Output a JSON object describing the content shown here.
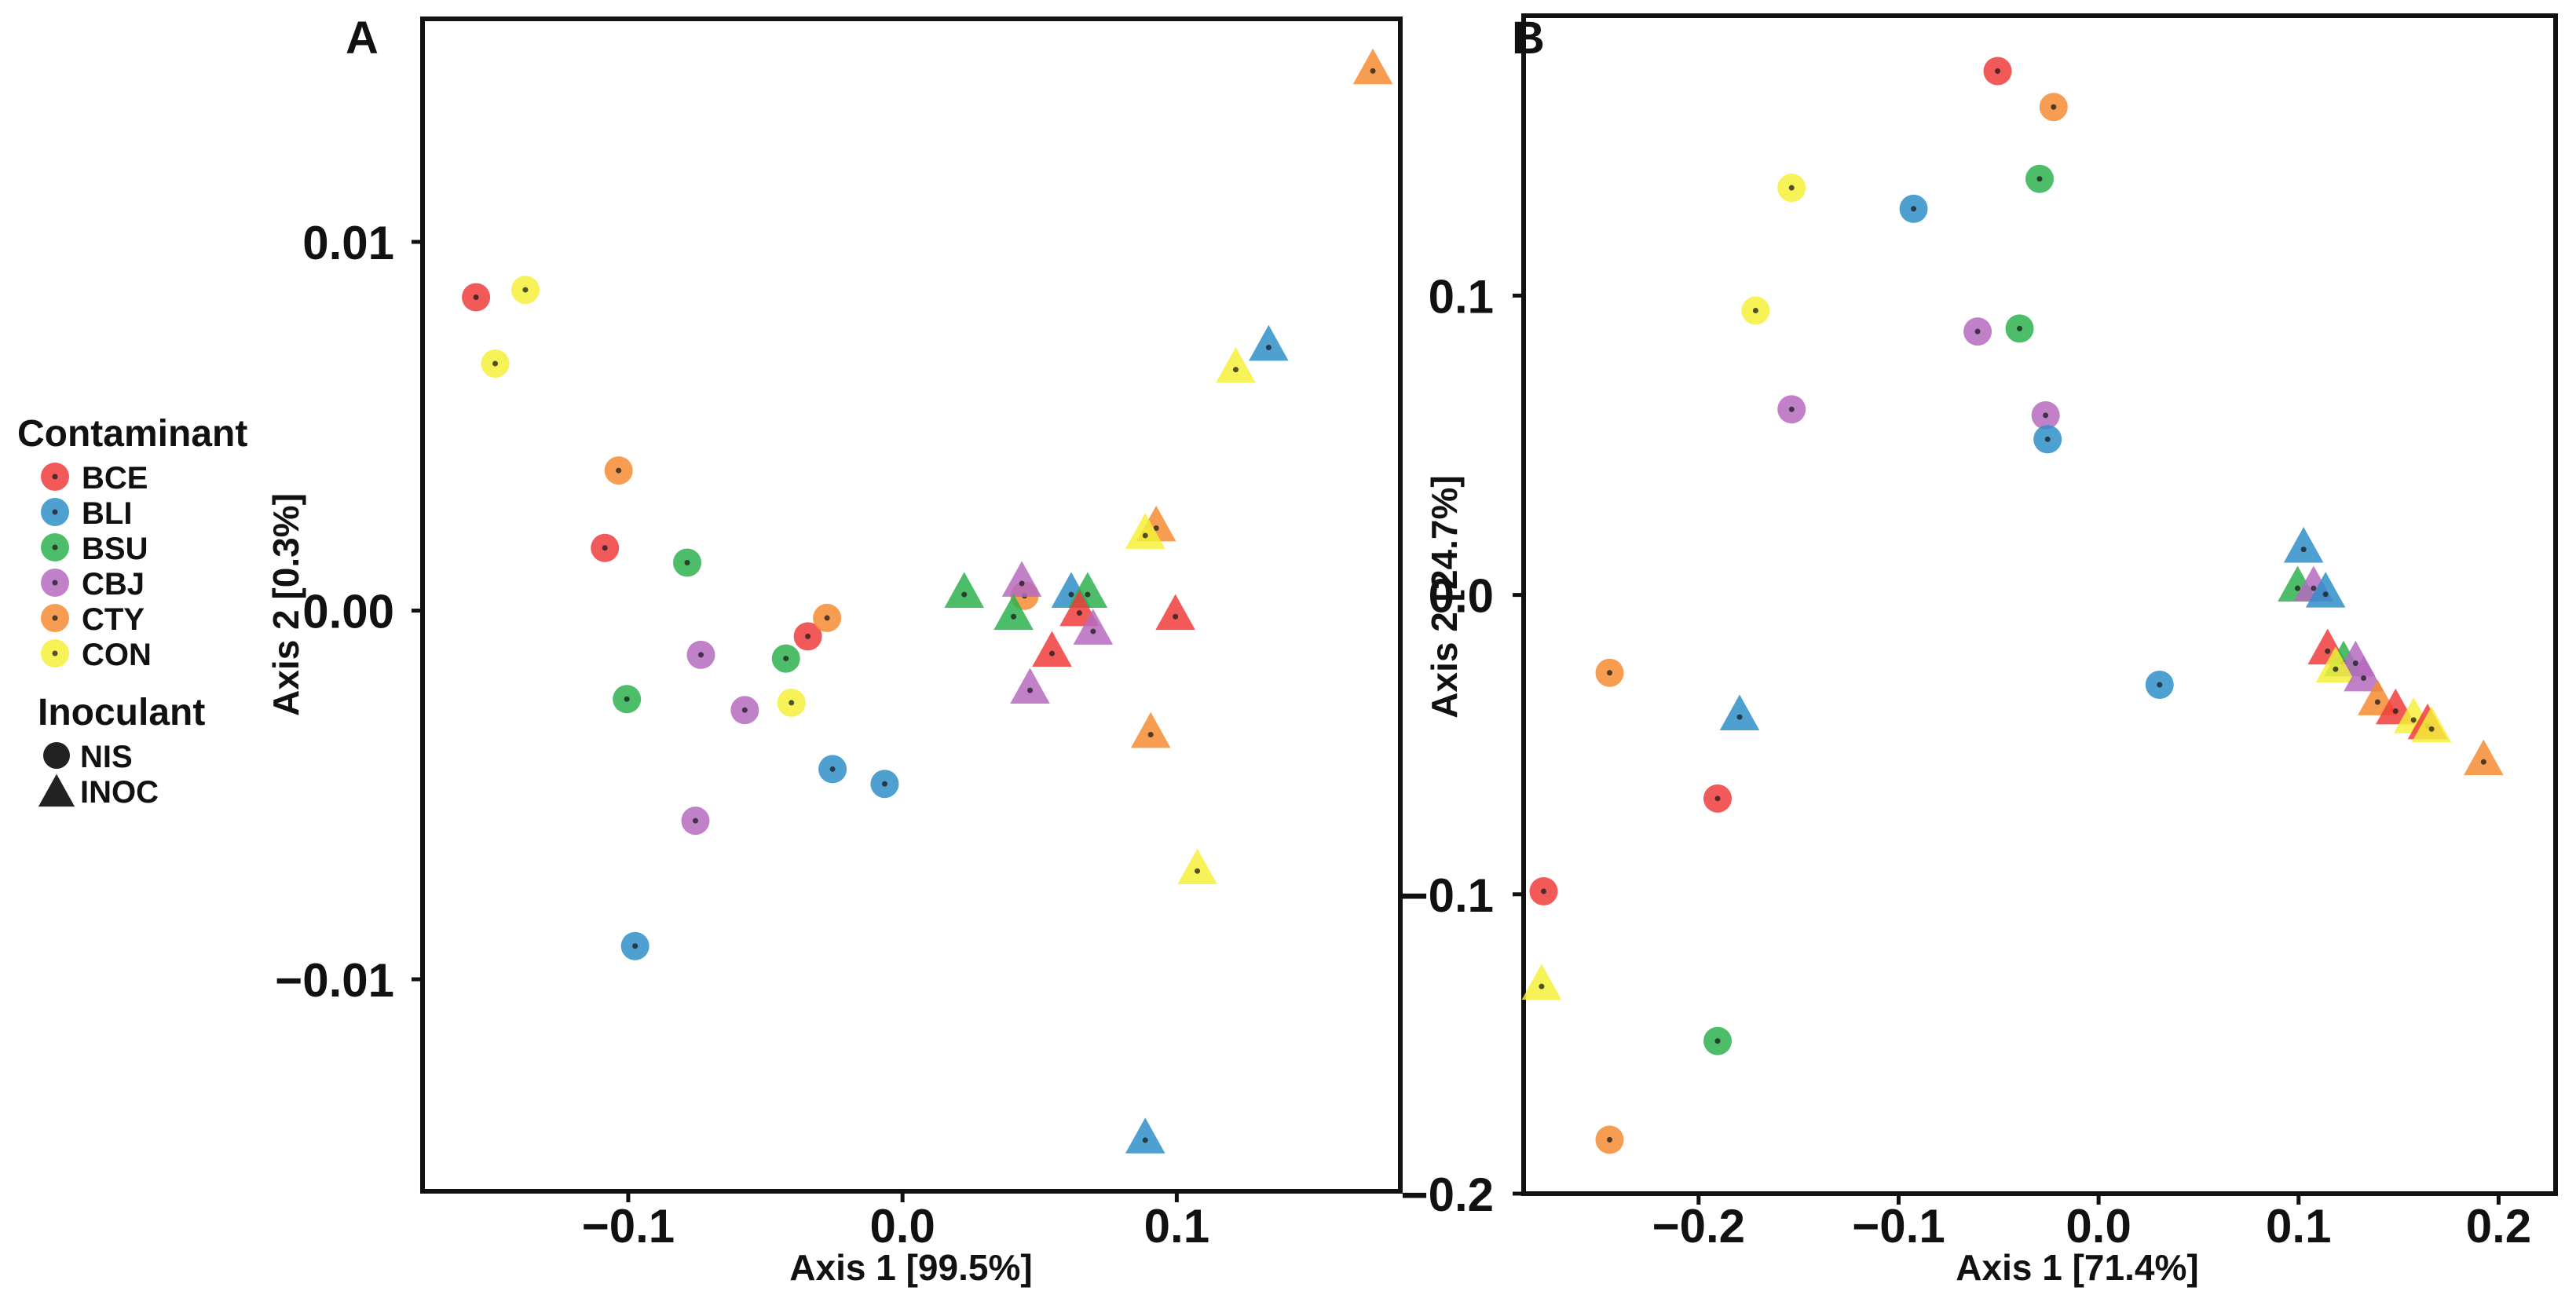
{
  "colors": {
    "BCE": "#f03c3c",
    "BLI": "#2f8fc8",
    "BSU": "#2eb24f",
    "CBJ": "#b56bbf",
    "CTY": "#f48c32",
    "CON": "#f5f03a"
  },
  "legend": {
    "contaminant_title": "Contaminant",
    "contaminant_items": [
      "BCE",
      "BLI",
      "BSU",
      "CBJ",
      "CTY",
      "CON"
    ],
    "inoculant_title": "Inoculant",
    "inoculant_items": [
      {
        "label": "NIS",
        "shape": "circle"
      },
      {
        "label": "INOC",
        "shape": "triangle"
      }
    ]
  },
  "chart_data": [
    {
      "panel": "A",
      "type": "scatter",
      "xlabel": "Axis 1   [99.5%]",
      "ylabel": "Axis 2   [0.3%]",
      "xlim": [
        -0.175,
        0.1815
      ],
      "ylim": [
        -0.01575,
        0.01605
      ],
      "xticks": [
        -0.1,
        0.0,
        0.1
      ],
      "xtick_labels": [
        "−0.1",
        "0.0",
        "0.1"
      ],
      "yticks": [
        0.01,
        0.0,
        -0.01
      ],
      "ytick_labels": [
        "0.01",
        "0.00",
        "−0.01"
      ],
      "points": [
        {
          "x": -0.1555,
          "y": 0.0085,
          "group": "BCE",
          "shape": "NIS"
        },
        {
          "x": -0.1375,
          "y": 0.0087,
          "group": "CON",
          "shape": "NIS"
        },
        {
          "x": -0.1485,
          "y": 0.0067,
          "group": "CON",
          "shape": "NIS"
        },
        {
          "x": -0.1035,
          "y": 0.0038,
          "group": "CTY",
          "shape": "NIS"
        },
        {
          "x": -0.1085,
          "y": 0.0017,
          "group": "BCE",
          "shape": "NIS"
        },
        {
          "x": -0.0785,
          "y": 0.0013,
          "group": "BSU",
          "shape": "NIS"
        },
        {
          "x": -0.1005,
          "y": -0.0024,
          "group": "BSU",
          "shape": "NIS"
        },
        {
          "x": -0.0735,
          "y": -0.0012,
          "group": "CBJ",
          "shape": "NIS"
        },
        {
          "x": -0.0575,
          "y": -0.0027,
          "group": "CBJ",
          "shape": "NIS"
        },
        {
          "x": -0.0405,
          "y": -0.0025,
          "group": "CON",
          "shape": "NIS"
        },
        {
          "x": -0.0425,
          "y": -0.0013,
          "group": "BSU",
          "shape": "NIS"
        },
        {
          "x": -0.0345,
          "y": -0.0007,
          "group": "BCE",
          "shape": "NIS"
        },
        {
          "x": -0.0275,
          "y": -0.0002,
          "group": "CTY",
          "shape": "NIS"
        },
        {
          "x": -0.0255,
          "y": -0.0043,
          "group": "BLI",
          "shape": "NIS"
        },
        {
          "x": -0.0065,
          "y": -0.0047,
          "group": "BLI",
          "shape": "NIS"
        },
        {
          "x": -0.0755,
          "y": -0.0057,
          "group": "CBJ",
          "shape": "NIS"
        },
        {
          "x": -0.0975,
          "y": -0.0091,
          "group": "BLI",
          "shape": "NIS"
        },
        {
          "x": 0.0445,
          "y": 0.0004,
          "group": "CTY",
          "shape": "NIS"
        },
        {
          "x": 0.1715,
          "y": 0.0147,
          "group": "CTY",
          "shape": "INOC"
        },
        {
          "x": 0.1335,
          "y": 0.0072,
          "group": "BLI",
          "shape": "INOC"
        },
        {
          "x": 0.1215,
          "y": 0.0066,
          "group": "CON",
          "shape": "INOC"
        },
        {
          "x": 0.0925,
          "y": 0.0023,
          "group": "CTY",
          "shape": "INOC"
        },
        {
          "x": 0.0885,
          "y": 0.0021,
          "group": "CON",
          "shape": "INOC"
        },
        {
          "x": 0.0225,
          "y": 0.0005,
          "group": "BSU",
          "shape": "INOC"
        },
        {
          "x": 0.0435,
          "y": 0.0008,
          "group": "CBJ",
          "shape": "INOC"
        },
        {
          "x": 0.0615,
          "y": 0.0005,
          "group": "BLI",
          "shape": "INOC"
        },
        {
          "x": 0.0675,
          "y": 0.0005,
          "group": "BSU",
          "shape": "INOC"
        },
        {
          "x": 0.0405,
          "y": -0.0001,
          "group": "BSU",
          "shape": "INOC"
        },
        {
          "x": 0.0645,
          "y": 0.0,
          "group": "BCE",
          "shape": "INOC"
        },
        {
          "x": 0.0995,
          "y": -0.0001,
          "group": "BCE",
          "shape": "INOC"
        },
        {
          "x": 0.0695,
          "y": -0.0005,
          "group": "CBJ",
          "shape": "INOC"
        },
        {
          "x": 0.0545,
          "y": -0.0011,
          "group": "BCE",
          "shape": "INOC"
        },
        {
          "x": 0.0465,
          "y": -0.0021,
          "group": "CBJ",
          "shape": "INOC"
        },
        {
          "x": 0.0905,
          "y": -0.0033,
          "group": "CTY",
          "shape": "INOC"
        },
        {
          "x": 0.1075,
          "y": -0.007,
          "group": "CON",
          "shape": "INOC"
        },
        {
          "x": 0.0885,
          "y": -0.0143,
          "group": "BLI",
          "shape": "INOC"
        }
      ]
    },
    {
      "panel": "B",
      "type": "scatter",
      "xlabel": "Axis 1   [71.4%]",
      "ylabel": "Axis 2   [24.7%]",
      "xlim": [
        -0.2875,
        0.2285
      ],
      "ylim": [
        -0.2,
        0.1935
      ],
      "xticks": [
        -0.2,
        -0.1,
        0.0,
        0.1,
        0.2
      ],
      "xtick_labels": [
        "−0.2",
        "−0.1",
        "0.0",
        "0.1",
        "0.2"
      ],
      "yticks": [
        0.1,
        0.0,
        -0.1,
        -0.2
      ],
      "ytick_labels": [
        "0.1",
        "0.0",
        "−0.1",
        "−0.2"
      ],
      "points": [
        {
          "x": -0.0505,
          "y": 0.175,
          "group": "BCE",
          "shape": "NIS"
        },
        {
          "x": -0.0225,
          "y": 0.163,
          "group": "CTY",
          "shape": "NIS"
        },
        {
          "x": -0.0295,
          "y": 0.139,
          "group": "BSU",
          "shape": "NIS"
        },
        {
          "x": -0.1535,
          "y": 0.136,
          "group": "CON",
          "shape": "NIS"
        },
        {
          "x": -0.0925,
          "y": 0.129,
          "group": "BLI",
          "shape": "NIS"
        },
        {
          "x": -0.1715,
          "y": 0.095,
          "group": "CON",
          "shape": "NIS"
        },
        {
          "x": -0.0395,
          "y": 0.089,
          "group": "BSU",
          "shape": "NIS"
        },
        {
          "x": -0.0605,
          "y": 0.088,
          "group": "CBJ",
          "shape": "NIS"
        },
        {
          "x": -0.1535,
          "y": 0.062,
          "group": "CBJ",
          "shape": "NIS"
        },
        {
          "x": -0.0265,
          "y": 0.06,
          "group": "CBJ",
          "shape": "NIS"
        },
        {
          "x": -0.0255,
          "y": 0.052,
          "group": "BLI",
          "shape": "NIS"
        },
        {
          "x": -0.2445,
          "y": -0.026,
          "group": "CTY",
          "shape": "NIS"
        },
        {
          "x": 0.0305,
          "y": -0.03,
          "group": "BLI",
          "shape": "NIS"
        },
        {
          "x": -0.1905,
          "y": -0.068,
          "group": "BCE",
          "shape": "NIS"
        },
        {
          "x": -0.2775,
          "y": -0.099,
          "group": "BCE",
          "shape": "NIS"
        },
        {
          "x": -0.1905,
          "y": -0.149,
          "group": "BSU",
          "shape": "NIS"
        },
        {
          "x": -0.2445,
          "y": -0.182,
          "group": "CTY",
          "shape": "NIS"
        },
        {
          "x": 0.1025,
          "y": 0.016,
          "group": "BLI",
          "shape": "INOC"
        },
        {
          "x": 0.0995,
          "y": 0.003,
          "group": "BSU",
          "shape": "INOC"
        },
        {
          "x": 0.1075,
          "y": 0.003,
          "group": "CBJ",
          "shape": "INOC"
        },
        {
          "x": 0.1135,
          "y": 0.001,
          "group": "BLI",
          "shape": "INOC"
        },
        {
          "x": -0.1795,
          "y": -0.04,
          "group": "BLI",
          "shape": "INOC"
        },
        {
          "x": 0.1145,
          "y": -0.018,
          "group": "BCE",
          "shape": "INOC"
        },
        {
          "x": 0.1225,
          "y": -0.022,
          "group": "BSU",
          "shape": "INOC"
        },
        {
          "x": 0.1285,
          "y": -0.022,
          "group": "CBJ",
          "shape": "INOC"
        },
        {
          "x": 0.1185,
          "y": -0.024,
          "group": "CON",
          "shape": "INOC"
        },
        {
          "x": 0.1325,
          "y": -0.027,
          "group": "CBJ",
          "shape": "INOC"
        },
        {
          "x": 0.1395,
          "y": -0.035,
          "group": "CTY",
          "shape": "INOC"
        },
        {
          "x": 0.1485,
          "y": -0.038,
          "group": "BCE",
          "shape": "INOC"
        },
        {
          "x": 0.1575,
          "y": -0.041,
          "group": "CON",
          "shape": "INOC"
        },
        {
          "x": 0.1645,
          "y": -0.043,
          "group": "BCE",
          "shape": "INOC"
        },
        {
          "x": 0.1665,
          "y": -0.044,
          "group": "CON",
          "shape": "INOC"
        },
        {
          "x": 0.1925,
          "y": -0.055,
          "group": "CTY",
          "shape": "INOC"
        },
        {
          "x": -0.2785,
          "y": -0.13,
          "group": "CON",
          "shape": "INOC"
        }
      ]
    }
  ]
}
